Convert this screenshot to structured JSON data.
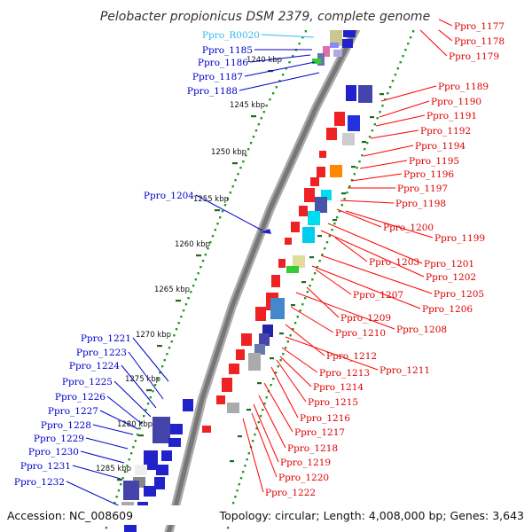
{
  "title": "Pelobacter propionicus DSM 2379, complete genome",
  "accession": "Accession: NC_008609",
  "topology": "Topology: circular; Length: 4,008,000 bp; Genes: 3,643",
  "colors": {
    "backbone": "#888888",
    "forward_label": "#0000cc",
    "reverse_label": "#dd0000",
    "rna_label": "#33bbee",
    "skew_dots": "#229922",
    "tick": "#226622",
    "leader": "#0000ff",
    "leader_reverse": "#ff0000"
  },
  "ticks": [
    "1240 kbp",
    "1245 kbp",
    "1250 kbp",
    "1255 kbp",
    "1260 kbp",
    "1265 kbp",
    "1270 kbp",
    "1275 kbp",
    "1280 kbp",
    "1285 kbp"
  ],
  "left_labels": [
    {
      "text": "Ppro_R0020",
      "kind": "rna"
    },
    {
      "text": "Ppro_1185",
      "kind": "cds"
    },
    {
      "text": "Ppro_1186",
      "kind": "cds"
    },
    {
      "text": "Ppro_1187",
      "kind": "cds"
    },
    {
      "text": "Ppro_1188",
      "kind": "cds"
    },
    {
      "text": "Ppro_1204",
      "kind": "cds"
    },
    {
      "text": "Ppro_1221",
      "kind": "cds"
    },
    {
      "text": "Ppro_1223",
      "kind": "cds"
    },
    {
      "text": "Ppro_1224",
      "kind": "cds"
    },
    {
      "text": "Ppro_1225",
      "kind": "cds"
    },
    {
      "text": "Ppro_1226",
      "kind": "cds"
    },
    {
      "text": "Ppro_1227",
      "kind": "cds"
    },
    {
      "text": "Ppro_1228",
      "kind": "cds"
    },
    {
      "text": "Ppro_1229",
      "kind": "cds"
    },
    {
      "text": "Ppro_1230",
      "kind": "cds"
    },
    {
      "text": "Ppro_1231",
      "kind": "cds"
    },
    {
      "text": "Ppro_1232",
      "kind": "cds"
    }
  ],
  "right_labels": [
    "Ppro_1177",
    "Ppro_1178",
    "Ppro_1179",
    "Ppro_1189",
    "Ppro_1190",
    "Ppro_1191",
    "Ppro_1192",
    "Ppro_1194",
    "Ppro_1195",
    "Ppro_1196",
    "Ppro_1197",
    "Ppro_1198",
    "Ppro_1200",
    "Ppro_1199",
    "Ppro_1201",
    "Ppro_1203",
    "Ppro_1202",
    "Ppro_1205",
    "Ppro_1207",
    "Ppro_1206",
    "Ppro_1209",
    "Ppro_1208",
    "Ppro_1210",
    "Ppro_1212",
    "Ppro_1211",
    "Ppro_1213",
    "Ppro_1214",
    "Ppro_1215",
    "Ppro_1216",
    "Ppro_1217",
    "Ppro_1218",
    "Ppro_1219",
    "Ppro_1220",
    "Ppro_1222"
  ]
}
